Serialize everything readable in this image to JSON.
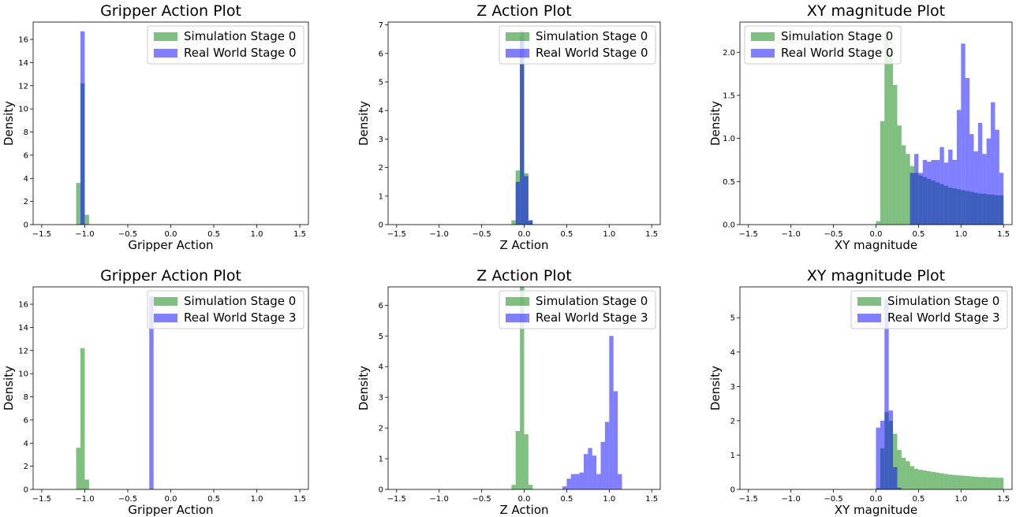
{
  "colors": {
    "sim": "#008000",
    "real": "#0000ff",
    "bar_alpha": 0.5
  },
  "chart_data": [
    {
      "type": "bar",
      "title": "Gripper Action Plot",
      "xlabel": "Gripper Action",
      "ylabel": "Density",
      "xlim": [
        -1.6,
        1.6
      ],
      "ylim": [
        0,
        17.5
      ],
      "xticks": [
        -1.5,
        -1.0,
        -0.5,
        0.0,
        0.5,
        1.0,
        1.5
      ],
      "xtick_labels": [
        "−1.5",
        "−1.0",
        "−0.5",
        "0.0",
        "0.5",
        "1.0",
        "1.5"
      ],
      "yticks": [
        0,
        2,
        4,
        6,
        8,
        10,
        12,
        14,
        16
      ],
      "ytick_labels": [
        "0",
        "2",
        "4",
        "6",
        "8",
        "10",
        "12",
        "14",
        "16"
      ],
      "legend": "top-right",
      "grid": false,
      "series": [
        {
          "name": "Simulation Stage 0",
          "color": "sim",
          "bin_width": 0.05,
          "bins": [
            [
              -1.1,
              3.6
            ],
            [
              -1.05,
              12.2
            ],
            [
              -1.0,
              0.85
            ]
          ]
        },
        {
          "name": "Real World Stage 0",
          "color": "real",
          "bin_width": 0.05,
          "bins": [
            [
              -1.05,
              16.7
            ]
          ]
        }
      ]
    },
    {
      "type": "bar",
      "title": "Z Action Plot",
      "xlabel": "Z Action",
      "ylabel": "Density",
      "xlim": [
        -1.6,
        1.6
      ],
      "ylim": [
        0,
        7.1
      ],
      "xticks": [
        -1.5,
        -1.0,
        -0.5,
        0.0,
        0.5,
        1.0,
        1.5
      ],
      "xtick_labels": [
        "−1.5",
        "−1.0",
        "−0.5",
        "0.0",
        "0.5",
        "1.0",
        "1.5"
      ],
      "yticks": [
        0,
        1,
        2,
        3,
        4,
        5,
        6,
        7
      ],
      "ytick_labels": [
        "0",
        "1",
        "2",
        "3",
        "4",
        "5",
        "6",
        "7"
      ],
      "legend": "top-right",
      "grid": false,
      "series": [
        {
          "name": "Simulation Stage 0",
          "color": "sim",
          "bin_width": 0.05,
          "bins": [
            [
              -0.15,
              0.15
            ],
            [
              -0.1,
              1.9
            ],
            [
              -0.05,
              6.6
            ],
            [
              0.0,
              1.8
            ],
            [
              0.05,
              0.15
            ]
          ]
        },
        {
          "name": "Real World Stage 0",
          "color": "real",
          "bin_width": 0.05,
          "bins": [
            [
              -0.15,
              0.0
            ],
            [
              -0.1,
              1.5
            ],
            [
              -0.05,
              6.8
            ],
            [
              0.0,
              1.7
            ],
            [
              0.05,
              0.15
            ]
          ]
        }
      ]
    },
    {
      "type": "bar",
      "title": "XY magnitude Plot",
      "xlabel": "XY magnitude",
      "ylabel": "Density",
      "xlim": [
        -1.6,
        1.6
      ],
      "ylim": [
        0,
        2.35
      ],
      "xticks": [
        -1.5,
        -1.0,
        -0.5,
        0.0,
        0.5,
        1.0,
        1.5
      ],
      "xtick_labels": [
        "−1.5",
        "−1.0",
        "−0.5",
        "0.0",
        "0.5",
        "1.0",
        "1.5"
      ],
      "yticks": [
        0,
        0.5,
        1.0,
        1.5,
        2.0
      ],
      "ytick_labels": [
        "0.0",
        "0.5",
        "1.0",
        "1.5",
        "2.0"
      ],
      "legend": "top-left",
      "grid": false,
      "series": [
        {
          "name": "Simulation Stage 0",
          "color": "sim",
          "bin_width": 0.05,
          "bins": [
            [
              0.0,
              0.04
            ],
            [
              0.05,
              1.2
            ],
            [
              0.1,
              2.25
            ],
            [
              0.15,
              2.0
            ],
            [
              0.2,
              1.62
            ],
            [
              0.25,
              1.15
            ],
            [
              0.3,
              0.92
            ],
            [
              0.35,
              0.82
            ],
            [
              0.4,
              0.68
            ],
            [
              0.45,
              0.6
            ],
            [
              0.5,
              0.57
            ],
            [
              0.55,
              0.55
            ],
            [
              0.6,
              0.53
            ],
            [
              0.65,
              0.51
            ],
            [
              0.7,
              0.49
            ],
            [
              0.75,
              0.47
            ],
            [
              0.8,
              0.45
            ],
            [
              0.85,
              0.43
            ],
            [
              0.9,
              0.42
            ],
            [
              0.95,
              0.41
            ],
            [
              1.0,
              0.4
            ],
            [
              1.05,
              0.39
            ],
            [
              1.1,
              0.38
            ],
            [
              1.15,
              0.37
            ],
            [
              1.2,
              0.36
            ],
            [
              1.25,
              0.36
            ],
            [
              1.3,
              0.35
            ],
            [
              1.35,
              0.35
            ],
            [
              1.4,
              0.34
            ],
            [
              1.45,
              0.34
            ]
          ]
        },
        {
          "name": "Real World Stage 0",
          "color": "real",
          "bin_width": 0.05,
          "bins": [
            [
              0.4,
              0.6
            ],
            [
              0.45,
              0.82
            ],
            [
              0.5,
              0.6
            ],
            [
              0.55,
              0.75
            ],
            [
              0.6,
              0.73
            ],
            [
              0.65,
              0.75
            ],
            [
              0.7,
              0.75
            ],
            [
              0.75,
              0.9
            ],
            [
              0.8,
              0.72
            ],
            [
              0.85,
              0.87
            ],
            [
              0.9,
              0.75
            ],
            [
              0.95,
              1.33
            ],
            [
              1.0,
              2.1
            ],
            [
              1.05,
              1.7
            ],
            [
              1.1,
              1.05
            ],
            [
              1.15,
              0.85
            ],
            [
              1.2,
              1.18
            ],
            [
              1.25,
              0.82
            ],
            [
              1.3,
              1.0
            ],
            [
              1.35,
              1.42
            ],
            [
              1.4,
              1.1
            ],
            [
              1.45,
              0.6
            ]
          ]
        }
      ]
    },
    {
      "type": "bar",
      "title": "Gripper Action Plot",
      "xlabel": "Gripper Action",
      "ylabel": "Density",
      "xlim": [
        -1.6,
        1.6
      ],
      "ylim": [
        0,
        17.5
      ],
      "xticks": [
        -1.5,
        -1.0,
        -0.5,
        0.0,
        0.5,
        1.0,
        1.5
      ],
      "xtick_labels": [
        "−1.5",
        "−1.0",
        "−0.5",
        "0.0",
        "0.5",
        "1.0",
        "1.5"
      ],
      "yticks": [
        0,
        2,
        4,
        6,
        8,
        10,
        12,
        14,
        16
      ],
      "ytick_labels": [
        "0",
        "2",
        "4",
        "6",
        "8",
        "10",
        "12",
        "14",
        "16"
      ],
      "legend": "top-right",
      "grid": false,
      "series": [
        {
          "name": "Simulation Stage 0",
          "color": "sim",
          "bin_width": 0.05,
          "bins": [
            [
              -1.1,
              3.6
            ],
            [
              -1.05,
              12.2
            ],
            [
              -1.0,
              0.85
            ]
          ]
        },
        {
          "name": "Real World Stage 3",
          "color": "real",
          "bin_width": 0.05,
          "bins": [
            [
              -0.25,
              16.7
            ]
          ]
        }
      ]
    },
    {
      "type": "bar",
      "title": "Z Action Plot",
      "xlabel": "Z Action",
      "ylabel": "Density",
      "xlim": [
        -1.6,
        1.6
      ],
      "ylim": [
        0,
        6.6
      ],
      "xticks": [
        -1.5,
        -1.0,
        -0.5,
        0.0,
        0.5,
        1.0,
        1.5
      ],
      "xtick_labels": [
        "−1.5",
        "−1.0",
        "−0.5",
        "0.0",
        "0.5",
        "1.0",
        "1.5"
      ],
      "yticks": [
        0,
        1,
        2,
        3,
        4,
        5,
        6
      ],
      "ytick_labels": [
        "0",
        "1",
        "2",
        "3",
        "4",
        "5",
        "6"
      ],
      "legend": "top-right",
      "grid": false,
      "series": [
        {
          "name": "Simulation Stage 0",
          "color": "sim",
          "bin_width": 0.05,
          "bins": [
            [
              -0.15,
              0.15
            ],
            [
              -0.1,
              1.9
            ],
            [
              -0.05,
              6.6
            ],
            [
              0.0,
              1.8
            ],
            [
              0.05,
              0.15
            ]
          ]
        },
        {
          "name": "Real World Stage 3",
          "color": "real",
          "bin_width": 0.05,
          "bins": [
            [
              0.45,
              0.1
            ],
            [
              0.5,
              0.35
            ],
            [
              0.55,
              0.5
            ],
            [
              0.6,
              0.5
            ],
            [
              0.65,
              0.55
            ],
            [
              0.7,
              1.15
            ],
            [
              0.75,
              1.35
            ],
            [
              0.8,
              1.1
            ],
            [
              0.85,
              0.5
            ],
            [
              0.9,
              1.55
            ],
            [
              0.95,
              2.2
            ],
            [
              1.0,
              5.0
            ],
            [
              1.05,
              3.2
            ],
            [
              1.1,
              0.5
            ]
          ]
        }
      ]
    },
    {
      "type": "bar",
      "title": "XY magnitude Plot",
      "xlabel": "XY magnitude",
      "ylabel": "Density",
      "xlim": [
        -1.6,
        1.6
      ],
      "ylim": [
        0,
        5.9
      ],
      "xticks": [
        -1.5,
        -1.0,
        -0.5,
        0.0,
        0.5,
        1.0,
        1.5
      ],
      "xtick_labels": [
        "−1.5",
        "−1.0",
        "−0.5",
        "0.0",
        "0.5",
        "1.0",
        "1.5"
      ],
      "yticks": [
        0,
        1,
        2,
        3,
        4,
        5
      ],
      "ytick_labels": [
        "0",
        "1",
        "2",
        "3",
        "4",
        "5"
      ],
      "legend": "top-right",
      "grid": false,
      "series": [
        {
          "name": "Simulation Stage 0",
          "color": "sim",
          "bin_width": 0.05,
          "bins": [
            [
              0.0,
              0.04
            ],
            [
              0.05,
              1.2
            ],
            [
              0.1,
              2.25
            ],
            [
              0.15,
              2.0
            ],
            [
              0.2,
              1.62
            ],
            [
              0.25,
              1.15
            ],
            [
              0.3,
              0.92
            ],
            [
              0.35,
              0.82
            ],
            [
              0.4,
              0.68
            ],
            [
              0.45,
              0.6
            ],
            [
              0.5,
              0.57
            ],
            [
              0.55,
              0.55
            ],
            [
              0.6,
              0.53
            ],
            [
              0.65,
              0.51
            ],
            [
              0.7,
              0.49
            ],
            [
              0.75,
              0.47
            ],
            [
              0.8,
              0.45
            ],
            [
              0.85,
              0.43
            ],
            [
              0.9,
              0.42
            ],
            [
              0.95,
              0.41
            ],
            [
              1.0,
              0.4
            ],
            [
              1.05,
              0.39
            ],
            [
              1.1,
              0.38
            ],
            [
              1.15,
              0.37
            ],
            [
              1.2,
              0.36
            ],
            [
              1.25,
              0.36
            ],
            [
              1.3,
              0.35
            ],
            [
              1.35,
              0.35
            ],
            [
              1.4,
              0.34
            ],
            [
              1.45,
              0.34
            ]
          ]
        },
        {
          "name": "Real World Stage 3",
          "color": "real",
          "bin_width": 0.05,
          "bins": [
            [
              0.0,
              1.8
            ],
            [
              0.05,
              2.0
            ],
            [
              0.1,
              5.55
            ],
            [
              0.15,
              2.3
            ],
            [
              0.2,
              0.65
            ],
            [
              0.25,
              0.05
            ]
          ]
        }
      ]
    }
  ]
}
